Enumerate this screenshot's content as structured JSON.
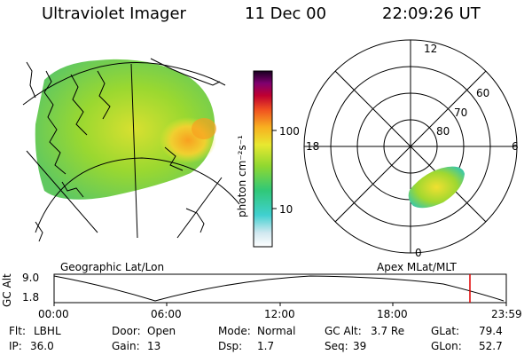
{
  "header": {
    "instrument": "Ultraviolet Imager",
    "date": "11 Dec 00",
    "time": "22:09:26 UT"
  },
  "colorbar": {
    "unit_label": "photon cm⁻²s⁻¹",
    "ticks": [
      "100",
      "10"
    ]
  },
  "geographic_panel": {
    "caption": "Geographic Lat/Lon"
  },
  "polar_panel": {
    "caption": "Apex MLat/MLT",
    "mlt_labels": {
      "top": "12",
      "left": "18",
      "right": "6",
      "bottom": "0"
    },
    "lat_labels": [
      "60",
      "70",
      "80"
    ]
  },
  "altitude_plot": {
    "ylabel": "GC Alt",
    "yticks": [
      "9.0",
      "1.8"
    ],
    "xticks": [
      "00:00",
      "06:00",
      "12:00",
      "18:00",
      "23:59"
    ],
    "marker_color": "#e00000"
  },
  "status": {
    "flt_label": "Flt:",
    "flt_value": "LBHL",
    "ip_label": "IP:",
    "ip_value": "36.0",
    "door_label": "Door:",
    "door_value": "Open",
    "gain_label": "Gain:",
    "gain_value": "13",
    "mode_label": "Mode:",
    "mode_value": "Normal",
    "dsp_label": "Dsp:",
    "dsp_value": "1.7",
    "gcalt_label": "GC Alt:",
    "gcalt_value": "3.7 Re",
    "seq_label": "Seq:",
    "seq_value": "39",
    "glat_label": "GLat:",
    "glat_value": "79.4",
    "glon_label": "GLon:",
    "glon_value": "52.7"
  }
}
